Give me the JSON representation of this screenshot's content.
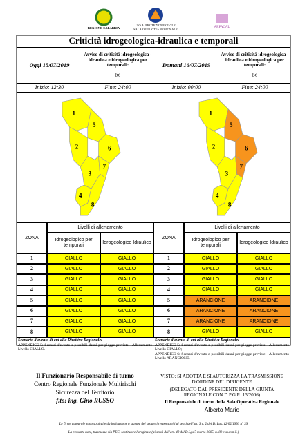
{
  "header": {
    "logos": [
      "REGIONE CALABRIA",
      "U.O.A. PROTEZIONE CIVILE",
      "SALA OPERATIVA REGIONALE",
      "ARPACAL"
    ]
  },
  "title": "Criticità idrogeologica-idraulica e temporali",
  "colors": {
    "GIALLO": "#ffff00",
    "ARANCIONE": "#f7941d"
  },
  "table_headers": {
    "zona": "ZONA",
    "livelli": "Livelli di allertamento",
    "temporali": "Idrogeologico per temporali",
    "idraulico": "Idrogeologico Idraulico"
  },
  "panels": [
    {
      "date": "Oggi 15/07/2019",
      "avviso": "Avviso di criticità idrogeologica - idraulica e idrogeologica per temporali:",
      "checkbox": "☒",
      "start": "Inizio: 12:30",
      "end": "Fine: 24:00",
      "zones": [
        {
          "zone": "1",
          "temporali": "GIALLO",
          "idraulico": "GIALLO"
        },
        {
          "zone": "2",
          "temporali": "GIALLO",
          "idraulico": "GIALLO"
        },
        {
          "zone": "3",
          "temporali": "GIALLO",
          "idraulico": "GIALLO"
        },
        {
          "zone": "4",
          "temporali": "GIALLO",
          "idraulico": "GIALLO"
        },
        {
          "zone": "5",
          "temporali": "GIALLO",
          "idraulico": "GIALLO"
        },
        {
          "zone": "6",
          "temporali": "GIALLO",
          "idraulico": "GIALLO"
        },
        {
          "zone": "7",
          "temporali": "GIALLO",
          "idraulico": "GIALLO"
        },
        {
          "zone": "8",
          "temporali": "GIALLO",
          "idraulico": "GIALLO"
        }
      ],
      "scenario_title": "Scenario d'evento di cui alla Direttiva Regionale:",
      "scenario": [
        "APPENDICE 5: Scenari d'evento e possibili danni per piogge previste - Allertamento Livello GIALLO."
      ]
    },
    {
      "date": "Domani 16/07/2019",
      "avviso": "Avviso di criticità idrogeologica - idraulica e idrogeologica per temporali:",
      "checkbox": "☒",
      "start": "Inizio: 00:00",
      "end": "Fine: 24:00",
      "zones": [
        {
          "zone": "1",
          "temporali": "GIALLO",
          "idraulico": "GIALLO"
        },
        {
          "zone": "2",
          "temporali": "GIALLO",
          "idraulico": "GIALLO"
        },
        {
          "zone": "3",
          "temporali": "GIALLO",
          "idraulico": "GIALLO"
        },
        {
          "zone": "4",
          "temporali": "GIALLO",
          "idraulico": "GIALLO"
        },
        {
          "zone": "5",
          "temporali": "ARANCIONE",
          "idraulico": "ARANCIONE"
        },
        {
          "zone": "6",
          "temporali": "ARANCIONE",
          "idraulico": "ARANCIONE"
        },
        {
          "zone": "7",
          "temporali": "ARANCIONE",
          "idraulico": "ARANCIONE"
        },
        {
          "zone": "8",
          "temporali": "GIALLO",
          "idraulico": "GIALLO"
        }
      ],
      "scenario_title": "Scenario d'evento di cui alla Direttiva Regionale:",
      "scenario": [
        "APPENDICE 5: Scenari d'evento e possibili danni per piogge previste - Allertamento Livello GIALLO;",
        "APPENDICE 6: Scenari d'evento e possibili danni per piogge previste - Allertamento Livello ARANCIONE."
      ]
    }
  ],
  "footer": {
    "left": [
      "Il Funzionario Responsabile di turno",
      "Centro Regionale Funzionale Multirischi",
      "Sicurezza del Territorio",
      "f.to: ing. Gino RUSSO"
    ],
    "right": [
      "VISTO: SI ADOTTA E SI AUTORIZZA LA TRASMISSIONE D'ORDINE DEL DIRIGENTE",
      "(DELEGATO DAL PRESIDENTE DELLA GIUNTA REGIONALE CON D.P.G.R. 13/2006)",
      "Il Responsabile di turno della Sala Operativa Regionale",
      "Alberto Mario"
    ]
  },
  "notes": [
    "Le firme autografe sono sostituite da indicazione a stampa dei soggetti responsabili ai sensi dell'art. 3 c. 2 del D. Lgs. 12/02/1993 n° 39",
    "La presente nota, trasmessa via PEC, sostituisce l'originale (ai sensi dell'art. 48 del D.Lgs 7 marzo 2005, n. 82 e ss.mm.ii.)"
  ]
}
